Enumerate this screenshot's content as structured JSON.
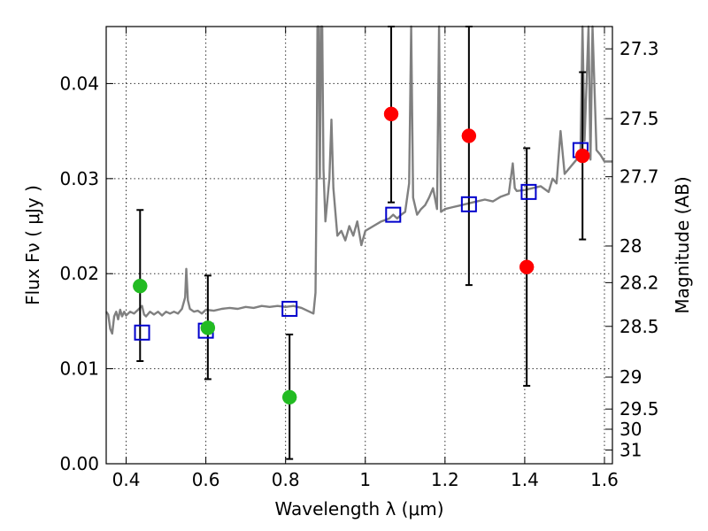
{
  "chart_data": {
    "type": "scatter",
    "title": "",
    "xlabel": "Wavelength  λ (μm)",
    "ylabel": "Flux  Fν  ( μJy )",
    "y2label": "Magnitude (AB)",
    "xlim": [
      0.35,
      1.62
    ],
    "ylim": [
      0.0,
      0.046
    ],
    "grid": true,
    "legend": "none",
    "xticks": [
      {
        "value": 0.4,
        "label": "0.4"
      },
      {
        "value": 0.6,
        "label": "0.6"
      },
      {
        "value": 0.8,
        "label": "0.8"
      },
      {
        "value": 1.0,
        "label": "1"
      },
      {
        "value": 1.2,
        "label": "1.2"
      },
      {
        "value": 1.4,
        "label": "1.4"
      },
      {
        "value": 1.6,
        "label": "1.6"
      }
    ],
    "yticks": [
      {
        "value": 0.0,
        "label": "0.00"
      },
      {
        "value": 0.01,
        "label": "0.01"
      },
      {
        "value": 0.02,
        "label": "0.02"
      },
      {
        "value": 0.03,
        "label": "0.03"
      },
      {
        "value": 0.04,
        "label": "0.04"
      }
    ],
    "y2ticks": [
      {
        "value": 27.3,
        "label": "27.3"
      },
      {
        "value": 27.5,
        "label": "27.5"
      },
      {
        "value": 27.7,
        "label": "27.7"
      },
      {
        "value": 28,
        "label": "28"
      },
      {
        "value": 28.2,
        "label": "28.2"
      },
      {
        "value": 28.5,
        "label": "28.5"
      },
      {
        "value": 29,
        "label": "29"
      },
      {
        "value": 29.5,
        "label": "29.5"
      },
      {
        "value": 30,
        "label": "30"
      },
      {
        "value": 31,
        "label": "31"
      }
    ],
    "colors": {
      "spectrum": "#808080",
      "model": "#0000cc",
      "optical": "#22bb22",
      "infrared": "#ff0000",
      "errorbar": "#000000"
    },
    "spectrum": [
      [
        0.35,
        0.016
      ],
      [
        0.355,
        0.0157
      ],
      [
        0.36,
        0.0142
      ],
      [
        0.365,
        0.0137
      ],
      [
        0.37,
        0.0155
      ],
      [
        0.375,
        0.016
      ],
      [
        0.38,
        0.0152
      ],
      [
        0.385,
        0.0162
      ],
      [
        0.39,
        0.0155
      ],
      [
        0.395,
        0.016
      ],
      [
        0.4,
        0.0156
      ],
      [
        0.41,
        0.016
      ],
      [
        0.42,
        0.0158
      ],
      [
        0.43,
        0.0162
      ],
      [
        0.44,
        0.0166
      ],
      [
        0.445,
        0.0157
      ],
      [
        0.45,
        0.0155
      ],
      [
        0.46,
        0.016
      ],
      [
        0.47,
        0.0157
      ],
      [
        0.48,
        0.016
      ],
      [
        0.49,
        0.0156
      ],
      [
        0.5,
        0.016
      ],
      [
        0.51,
        0.0158
      ],
      [
        0.52,
        0.016
      ],
      [
        0.53,
        0.0158
      ],
      [
        0.54,
        0.0163
      ],
      [
        0.548,
        0.0175
      ],
      [
        0.551,
        0.0205
      ],
      [
        0.555,
        0.0172
      ],
      [
        0.56,
        0.0163
      ],
      [
        0.57,
        0.016
      ],
      [
        0.58,
        0.0161
      ],
      [
        0.59,
        0.0158
      ],
      [
        0.6,
        0.0162
      ],
      [
        0.62,
        0.0161
      ],
      [
        0.64,
        0.0163
      ],
      [
        0.66,
        0.0164
      ],
      [
        0.68,
        0.0163
      ],
      [
        0.7,
        0.0165
      ],
      [
        0.72,
        0.0164
      ],
      [
        0.74,
        0.0166
      ],
      [
        0.76,
        0.0165
      ],
      [
        0.78,
        0.0166
      ],
      [
        0.8,
        0.0165
      ],
      [
        0.82,
        0.0166
      ],
      [
        0.84,
        0.0164
      ],
      [
        0.86,
        0.016
      ],
      [
        0.87,
        0.0158
      ],
      [
        0.875,
        0.018
      ],
      [
        0.878,
        0.03
      ],
      [
        0.88,
        0.046
      ],
      [
        0.883,
        0.046
      ],
      [
        0.886,
        0.03
      ],
      [
        0.889,
        0.046
      ],
      [
        0.892,
        0.046
      ],
      [
        0.895,
        0.031
      ],
      [
        0.9,
        0.0255
      ],
      [
        0.91,
        0.03
      ],
      [
        0.915,
        0.0362
      ],
      [
        0.92,
        0.029
      ],
      [
        0.93,
        0.024
      ],
      [
        0.94,
        0.0245
      ],
      [
        0.95,
        0.0235
      ],
      [
        0.96,
        0.025
      ],
      [
        0.97,
        0.024
      ],
      [
        0.98,
        0.0255
      ],
      [
        0.99,
        0.023
      ],
      [
        1.0,
        0.0245
      ],
      [
        1.02,
        0.025
      ],
      [
        1.04,
        0.0255
      ],
      [
        1.06,
        0.0258
      ],
      [
        1.07,
        0.0262
      ],
      [
        1.08,
        0.0258
      ],
      [
        1.09,
        0.0262
      ],
      [
        1.1,
        0.0265
      ],
      [
        1.11,
        0.0295
      ],
      [
        1.115,
        0.046
      ],
      [
        1.12,
        0.028
      ],
      [
        1.13,
        0.0262
      ],
      [
        1.14,
        0.0268
      ],
      [
        1.15,
        0.0272
      ],
      [
        1.16,
        0.028
      ],
      [
        1.17,
        0.029
      ],
      [
        1.18,
        0.0268
      ],
      [
        1.185,
        0.046
      ],
      [
        1.19,
        0.0265
      ],
      [
        1.2,
        0.0268
      ],
      [
        1.22,
        0.027
      ],
      [
        1.24,
        0.0272
      ],
      [
        1.26,
        0.0274
      ],
      [
        1.28,
        0.0276
      ],
      [
        1.3,
        0.0278
      ],
      [
        1.32,
        0.0276
      ],
      [
        1.34,
        0.0281
      ],
      [
        1.36,
        0.0284
      ],
      [
        1.37,
        0.0316
      ],
      [
        1.375,
        0.029
      ],
      [
        1.38,
        0.0287
      ],
      [
        1.4,
        0.0288
      ],
      [
        1.42,
        0.029
      ],
      [
        1.44,
        0.0292
      ],
      [
        1.46,
        0.0286
      ],
      [
        1.47,
        0.03
      ],
      [
        1.48,
        0.0295
      ],
      [
        1.49,
        0.035
      ],
      [
        1.5,
        0.0305
      ],
      [
        1.51,
        0.031
      ],
      [
        1.52,
        0.0315
      ],
      [
        1.53,
        0.032
      ],
      [
        1.54,
        0.033
      ],
      [
        1.545,
        0.046
      ],
      [
        1.55,
        0.034
      ],
      [
        1.56,
        0.046
      ],
      [
        1.565,
        0.032
      ],
      [
        1.57,
        0.046
      ],
      [
        1.58,
        0.033
      ],
      [
        1.59,
        0.0325
      ],
      [
        1.6,
        0.0318
      ],
      [
        1.62,
        0.0318
      ]
    ],
    "series": [
      {
        "marker": "open-square",
        "color": "#0000cc",
        "points": [
          {
            "x": 0.44,
            "y": 0.0138
          },
          {
            "x": 0.6,
            "y": 0.014
          },
          {
            "x": 0.81,
            "y": 0.0163
          },
          {
            "x": 1.07,
            "y": 0.0262
          },
          {
            "x": 1.26,
            "y": 0.0273
          },
          {
            "x": 1.41,
            "y": 0.0286
          },
          {
            "x": 1.54,
            "y": 0.033
          }
        ]
      },
      {
        "marker": "filled-circle",
        "color": "#22bb22",
        "points": [
          {
            "x": 0.435,
            "y": 0.0187,
            "ylo": 0.0108,
            "yhi": 0.0267
          },
          {
            "x": 0.605,
            "y": 0.0143,
            "ylo": 0.0089,
            "yhi": 0.0198
          },
          {
            "x": 0.81,
            "y": 0.007,
            "ylo": 0.0005,
            "yhi": 0.0136
          }
        ]
      },
      {
        "marker": "filled-circle",
        "color": "#ff0000",
        "points": [
          {
            "x": 1.065,
            "y": 0.0368,
            "ylo": 0.0275,
            "yhi": 0.046
          },
          {
            "x": 1.26,
            "y": 0.0345,
            "ylo": 0.0188,
            "yhi": 0.046
          },
          {
            "x": 1.405,
            "y": 0.0207,
            "ylo": 0.0082,
            "yhi": 0.0332
          },
          {
            "x": 1.545,
            "y": 0.0324,
            "ylo": 0.0236,
            "yhi": 0.0412
          }
        ]
      }
    ]
  }
}
